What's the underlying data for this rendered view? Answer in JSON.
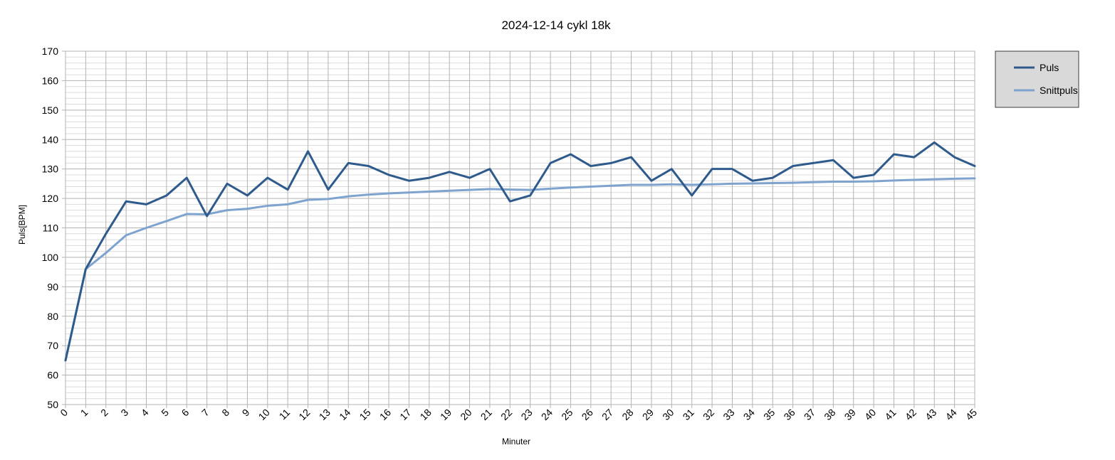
{
  "chart_data": {
    "type": "line",
    "title": "2024-12-14 cykl 18k",
    "xlabel": "Minuter",
    "ylabel": "Puls[BPM]",
    "xlim": [
      0,
      45
    ],
    "ylim": [
      50,
      170
    ],
    "y_major_step": 10,
    "y_minor_step": 2,
    "grid": true,
    "legend_position": "right-top",
    "x": [
      0,
      1,
      2,
      3,
      4,
      5,
      6,
      7,
      8,
      9,
      10,
      11,
      12,
      13,
      14,
      15,
      16,
      17,
      18,
      19,
      20,
      21,
      22,
      23,
      24,
      25,
      26,
      27,
      28,
      29,
      30,
      31,
      32,
      33,
      34,
      35,
      36,
      37,
      38,
      39,
      40,
      41,
      42,
      43,
      44,
      45
    ],
    "series": [
      {
        "name": "Puls",
        "color": "#2f5b8c",
        "values": [
          65,
          96,
          108,
          119,
          118,
          121,
          127,
          114,
          125,
          121,
          127,
          123,
          136,
          123,
          132,
          131,
          128,
          126,
          127,
          129,
          127,
          130,
          119,
          121,
          132,
          135,
          131,
          132,
          134,
          126,
          130,
          121,
          130,
          130,
          126,
          127,
          131,
          132,
          133,
          127,
          128,
          135,
          134,
          139,
          134,
          131
        ]
      },
      {
        "name": "Snittpuls",
        "color": "#7fa3cf",
        "values": [
          65,
          96,
          101.5,
          107.5,
          110,
          112.3,
          114.7,
          114.6,
          116,
          116.5,
          117.5,
          118,
          119.5,
          119.8,
          120.7,
          121.3,
          121.7,
          122,
          122.3,
          122.6,
          122.9,
          123.2,
          123,
          122.9,
          123.3,
          123.7,
          124,
          124.3,
          124.6,
          124.6,
          124.8,
          124.6,
          124.8,
          125,
          125.1,
          125.2,
          125.3,
          125.5,
          125.7,
          125.7,
          125.8,
          126.1,
          126.3,
          126.5,
          126.7,
          126.8
        ]
      }
    ]
  }
}
